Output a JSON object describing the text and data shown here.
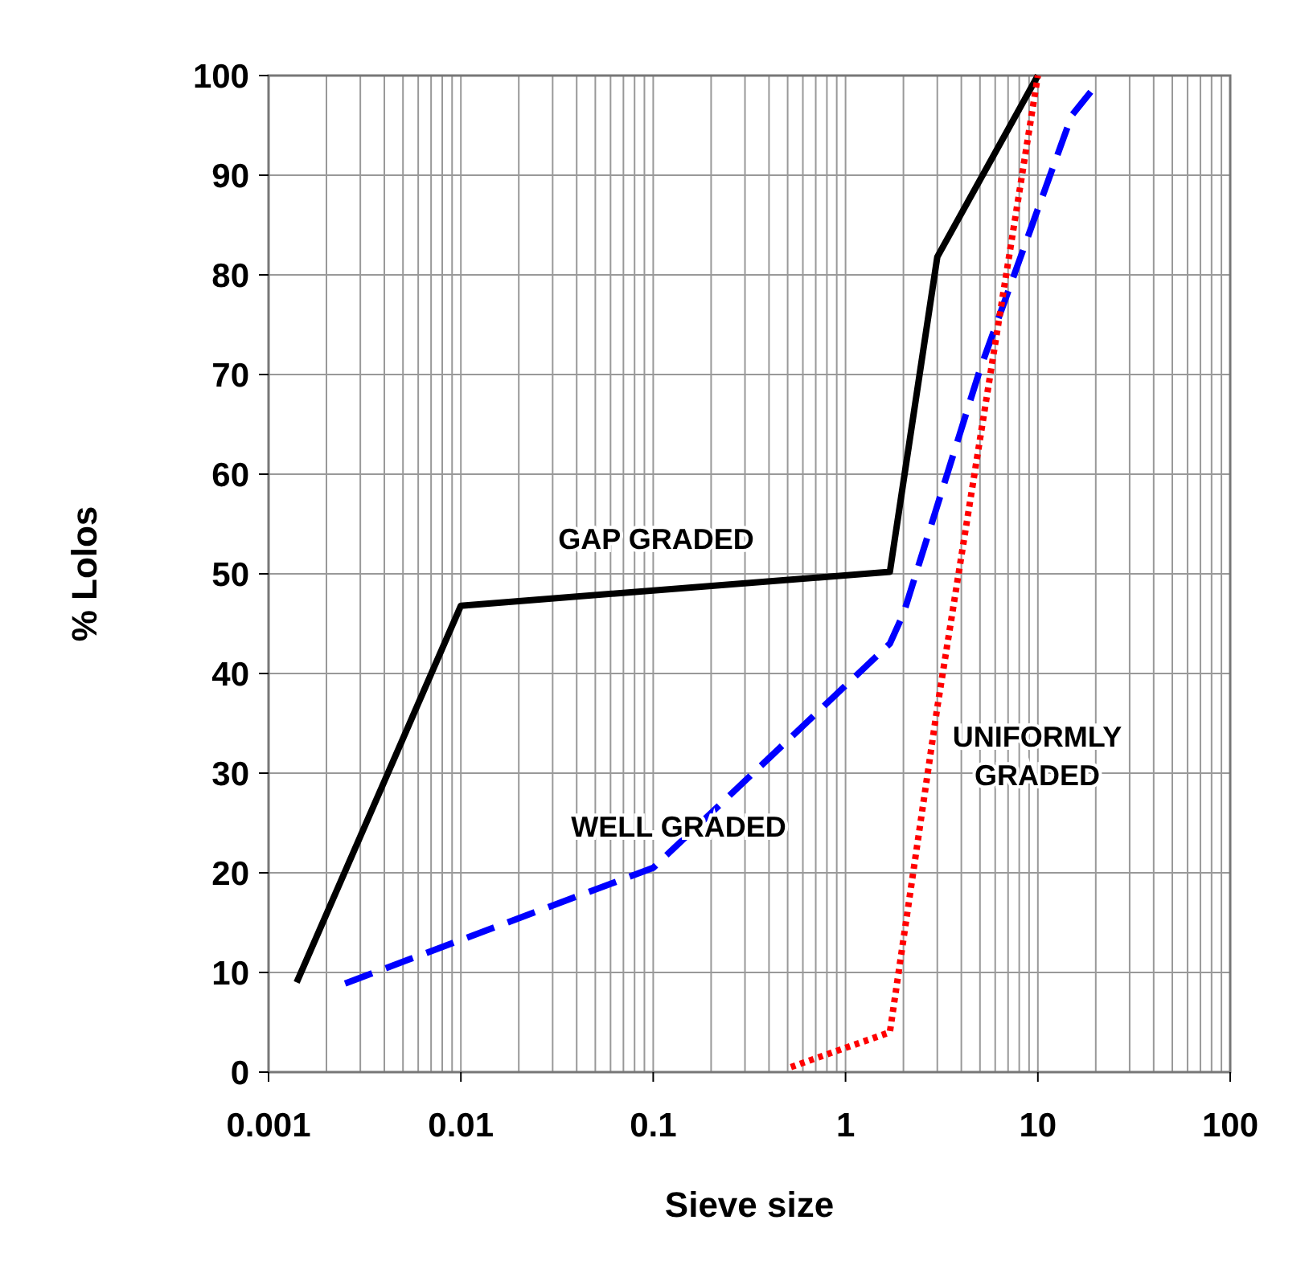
{
  "chart_data": {
    "type": "line",
    "xlabel": "Sieve size",
    "ylabel": "% Lolos",
    "log": "x",
    "grid": true,
    "xlim": [
      0.001,
      100
    ],
    "xticks": [
      0.001,
      0.01,
      0.1,
      1,
      10,
      100
    ],
    "ylim": [
      0,
      100
    ],
    "yticks": [
      0,
      10,
      20,
      30,
      40,
      50,
      60,
      70,
      80,
      90,
      100
    ],
    "series": [
      {
        "name": "GAP GRADED",
        "color": "#000000",
        "line_style": "solid",
        "x": [
          0.0014,
          0.01,
          1.7,
          3,
          10
        ],
        "values": [
          9,
          46.8,
          50.2,
          81.8,
          100
        ]
      },
      {
        "name": "WELL GRADED",
        "color": "#0000ff",
        "line_style": "dashed",
        "x": [
          0.0025,
          0.1,
          1.7,
          2,
          5,
          10,
          15,
          20
        ],
        "values": [
          8.9,
          20.5,
          43,
          46,
          70.5,
          86.6,
          96,
          99
        ]
      },
      {
        "name": "UNIFORMLY\nGRADED",
        "color": "#ff0000",
        "line_style": "dotted",
        "x": [
          0.52,
          1.7,
          3,
          10
        ],
        "values": [
          0.5,
          4,
          36.6,
          100
        ]
      }
    ]
  }
}
